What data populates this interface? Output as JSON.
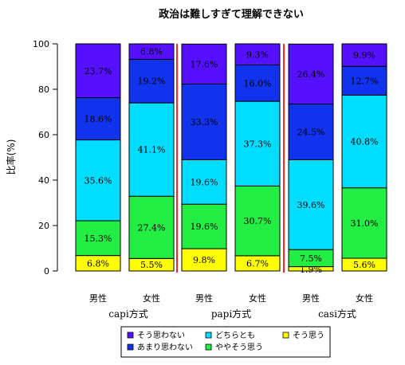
{
  "chart_data": {
    "type": "bar",
    "stacked": true,
    "title": "政治は難しすぎて理解できない",
    "ylabel": "比率(%)",
    "xlabel": "",
    "ylim": [
      0,
      100
    ],
    "yticks": [
      0,
      20,
      40,
      60,
      80,
      100
    ],
    "groups": [
      {
        "label": "capi方式",
        "categories": [
          "男性",
          "女性"
        ]
      },
      {
        "label": "papi方式",
        "categories": [
          "男性",
          "女性"
        ]
      },
      {
        "label": "casi方式",
        "categories": [
          "男性",
          "女性"
        ]
      }
    ],
    "categories": [
      "男性",
      "女性",
      "男性",
      "女性",
      "男性",
      "女性"
    ],
    "series": [
      {
        "name": "そう思う",
        "color": "#ffff00",
        "values": [
          6.8,
          5.5,
          9.8,
          6.7,
          1.9,
          5.6
        ]
      },
      {
        "name": "ややそう思う",
        "color": "#22ee44",
        "values": [
          15.3,
          27.4,
          19.6,
          30.7,
          7.5,
          31.0
        ]
      },
      {
        "name": "どちらとも",
        "color": "#00ddff",
        "values": [
          35.6,
          41.1,
          19.6,
          37.3,
          39.6,
          40.8
        ]
      },
      {
        "name": "あまり思わない",
        "color": "#1133ee",
        "values": [
          18.6,
          19.2,
          33.3,
          16.0,
          24.5,
          12.7
        ]
      },
      {
        "name": "そう思わない",
        "color": "#5511ff",
        "values": [
          23.7,
          6.8,
          17.6,
          9.3,
          26.4,
          9.9
        ]
      }
    ],
    "separator_color": "#ff2222",
    "legend": {
      "placement": "bottom",
      "order": [
        "そう思わない",
        "あまり思わない",
        "どちらとも",
        "ややそう思う",
        "そう思う"
      ]
    }
  }
}
